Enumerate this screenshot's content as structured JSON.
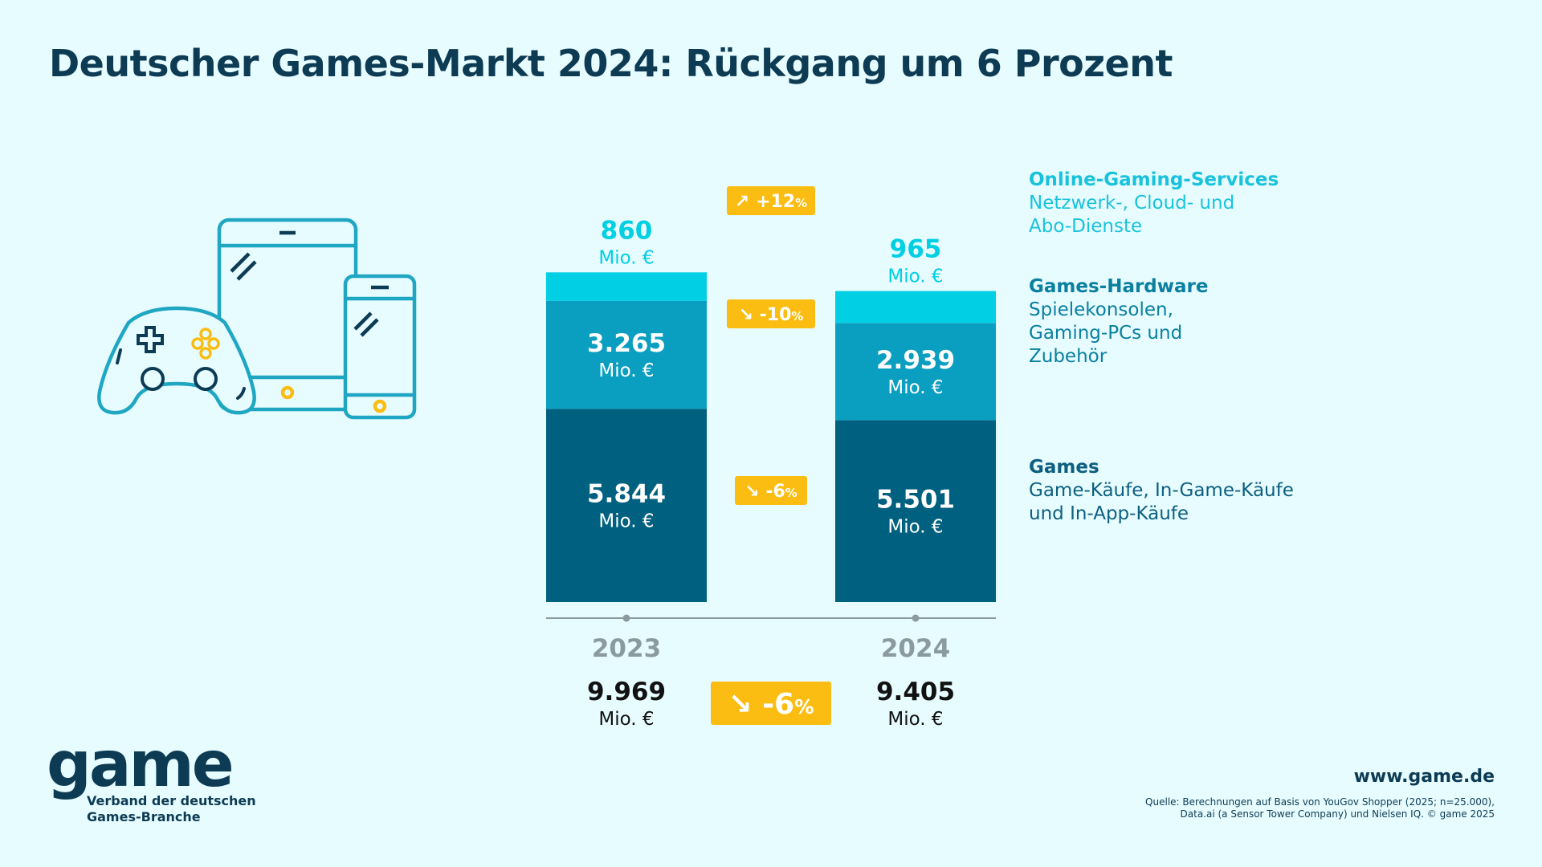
{
  "title": "Deutscher Games-Markt 2024: Rückgang um 6 Prozent",
  "colors": {
    "background": "#e6fcff",
    "dark_text": "#0d3b54",
    "online": "#00cfe4",
    "hardware": "#0a9fc0",
    "games": "#00607f",
    "badge": "#fbbd12",
    "axis": "#8a9aa0",
    "icon_line": "#1fa6c3",
    "icon_dark": "#0d3b54"
  },
  "chart_data": {
    "type": "bar",
    "stacked": true,
    "unit": "Mio. €",
    "categories": [
      "2023",
      "2024"
    ],
    "series": [
      {
        "name": "Games",
        "values": [
          5844,
          5501
        ],
        "labels": [
          "5.844",
          "5.501"
        ],
        "color": "#00607f"
      },
      {
        "name": "Games-Hardware",
        "values": [
          3265,
          2939
        ],
        "labels": [
          "3.265",
          "2.939"
        ],
        "color": "#0a9fc0"
      },
      {
        "name": "Online-Gaming-Services",
        "values": [
          860,
          965
        ],
        "labels": [
          "860",
          "965"
        ],
        "color": "#00cfe4"
      }
    ],
    "totals": {
      "values": [
        9969,
        9405
      ],
      "labels": [
        "9.969",
        "9.405"
      ]
    },
    "changes": [
      {
        "series": "Online-Gaming-Services",
        "arrow": "↗",
        "value": "+12",
        "suffix": "%"
      },
      {
        "series": "Games-Hardware",
        "arrow": "↘",
        "value": "-10",
        "suffix": "%"
      },
      {
        "series": "Games",
        "arrow": "↘",
        "value": "-6",
        "suffix": "%"
      }
    ],
    "total_change": {
      "arrow": "↘",
      "value": "-6",
      "suffix": "%"
    }
  },
  "legend": [
    {
      "title": "Online-Gaming-Services",
      "desc": "Netzwerk-, Cloud- und\nAbo-Dienste"
    },
    {
      "title": "Games-Hardware",
      "desc": "Spielekonsolen,\nGaming-PCs und\nZubehör"
    },
    {
      "title": "Games",
      "desc": "Game-Käufe, In-Game-Käufe\nund In-App-Käufe"
    }
  ],
  "logo": {
    "word": "game",
    "subtitle": "Verband der deutschen\nGames-Branche"
  },
  "footer": {
    "url": "www.game.de",
    "source": "Quelle: Berechnungen auf Basis von YouGov Shopper (2025; n=25.000),\nData.ai (a Sensor Tower Company) und Nielsen IQ. © game 2025"
  },
  "illustration": {
    "icons": [
      "gamepad-icon",
      "tablet-icon",
      "smartphone-icon"
    ]
  }
}
